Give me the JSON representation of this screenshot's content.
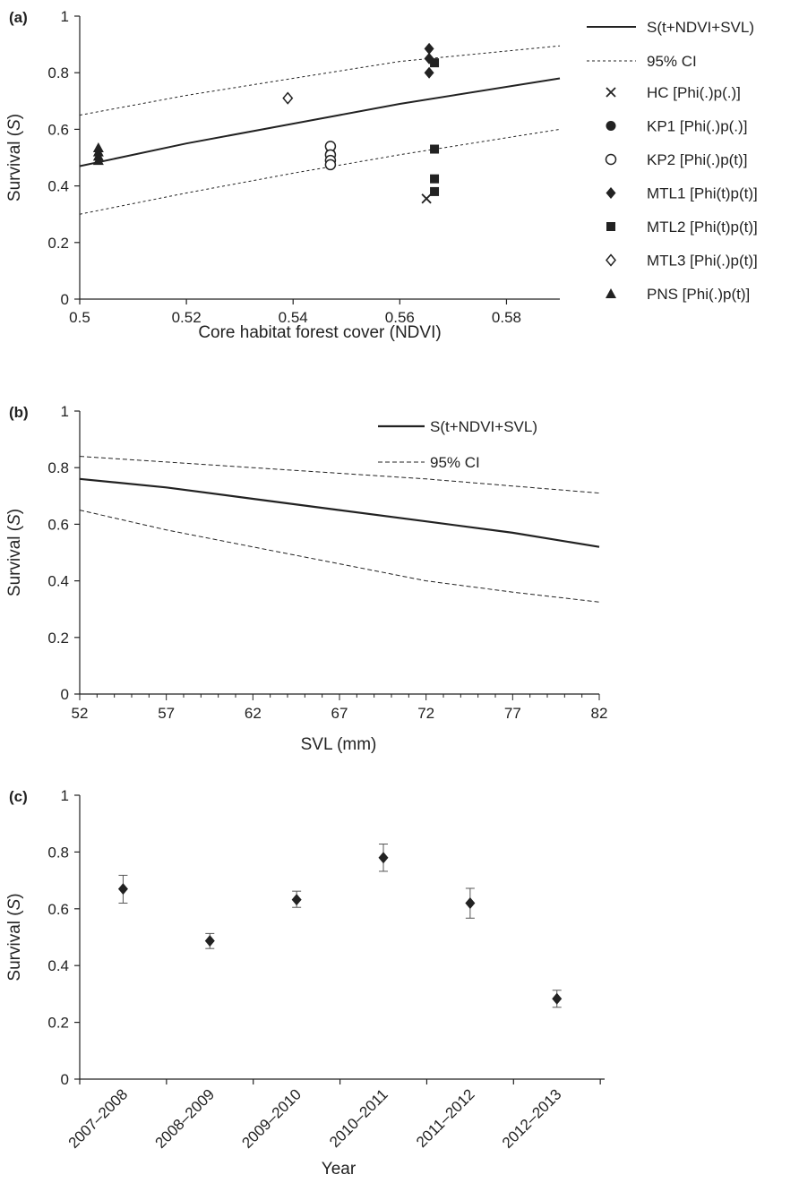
{
  "chart_data": [
    {
      "panel": "(a)",
      "type": "scatter",
      "xlabel": "Core habitat forest cover (NDVI)",
      "ylabel": "Survival",
      "ylabel_italic": "S",
      "xlim": [
        0.5,
        0.59
      ],
      "ylim": [
        0,
        1
      ],
      "xticks": [
        "0.5",
        "0.52",
        "0.54",
        "0.56",
        "0.58"
      ],
      "yticks": [
        "0",
        "0.2",
        "0.4",
        "0.6",
        "0.8",
        "1"
      ],
      "legend_position": "right",
      "grid": false,
      "lines": [
        {
          "name": "S(t+NDVI+SVL)",
          "style": "solid",
          "points": [
            [
              0.5,
              0.47
            ],
            [
              0.52,
              0.55
            ],
            [
              0.54,
              0.62
            ],
            [
              0.56,
              0.69
            ],
            [
              0.59,
              0.78
            ]
          ]
        },
        {
          "name": "95% CI",
          "style": "dotted",
          "points": [
            [
              0.5,
              0.65
            ],
            [
              0.52,
              0.72
            ],
            [
              0.54,
              0.78
            ],
            [
              0.56,
              0.84
            ],
            [
              0.59,
              0.895
            ]
          ]
        },
        {
          "name": "",
          "style": "dotted",
          "points": [
            [
              0.5,
              0.3
            ],
            [
              0.52,
              0.375
            ],
            [
              0.54,
              0.445
            ],
            [
              0.56,
              0.51
            ],
            [
              0.59,
              0.6
            ]
          ]
        }
      ],
      "series": [
        {
          "name": "HC  [Phi(.)p(.)]",
          "marker": "cross",
          "points": [
            [
              0.565,
              0.355
            ]
          ]
        },
        {
          "name": "KP1 [Phi(.)p(.)]",
          "marker": "circle-filled",
          "points": [
            [
              0.547,
              0.515
            ]
          ]
        },
        {
          "name": "KP2 [Phi(.)p(t)]",
          "marker": "circle-open",
          "points": [
            [
              0.547,
              0.54
            ],
            [
              0.547,
              0.51
            ],
            [
              0.547,
              0.49
            ],
            [
              0.547,
              0.475
            ]
          ]
        },
        {
          "name": "MTL1 [Phi(t)p(t)]",
          "marker": "diamond-filled",
          "points": [
            [
              0.5655,
              0.885
            ],
            [
              0.5655,
              0.85
            ],
            [
              0.5655,
              0.8
            ]
          ]
        },
        {
          "name": "MTL2 [Phi(t)p(t)]",
          "marker": "square-filled",
          "points": [
            [
              0.5665,
              0.835
            ],
            [
              0.5665,
              0.53
            ],
            [
              0.5665,
              0.425
            ],
            [
              0.5665,
              0.38
            ]
          ]
        },
        {
          "name": "MTL3 [Phi(.)p(t)]",
          "marker": "diamond-open",
          "points": [
            [
              0.539,
              0.71
            ]
          ]
        },
        {
          "name": "PNS [Phi(.)p(t)]",
          "marker": "triangle-filled",
          "points": [
            [
              0.5035,
              0.535
            ],
            [
              0.5035,
              0.52
            ],
            [
              0.5035,
              0.505
            ],
            [
              0.5035,
              0.49
            ]
          ]
        }
      ]
    },
    {
      "panel": "(b)",
      "type": "line",
      "xlabel": "SVL (mm)",
      "ylabel": "Survival",
      "ylabel_italic": "S",
      "xlim": [
        52,
        82
      ],
      "ylim": [
        0,
        1
      ],
      "xticks": [
        "52",
        "57",
        "62",
        "67",
        "72",
        "77",
        "82"
      ],
      "yticks": [
        "0",
        "0.2",
        "0.4",
        "0.6",
        "0.8",
        "1"
      ],
      "legend_position": "top-right",
      "grid": false,
      "series": [
        {
          "name": "S(t+NDVI+SVL)",
          "style": "solid",
          "x": [
            52,
            57,
            62,
            67,
            72,
            77,
            82
          ],
          "values": [
            0.76,
            0.73,
            0.69,
            0.65,
            0.61,
            0.57,
            0.52
          ]
        },
        {
          "name": "95% CI",
          "style": "dashed",
          "x": [
            52,
            57,
            62,
            67,
            72,
            77,
            82
          ],
          "values": [
            0.84,
            0.82,
            0.8,
            0.78,
            0.76,
            0.735,
            0.71
          ]
        },
        {
          "name": "",
          "style": "dashed",
          "x": [
            52,
            57,
            62,
            67,
            72,
            77,
            82
          ],
          "values": [
            0.65,
            0.58,
            0.52,
            0.46,
            0.4,
            0.36,
            0.325
          ]
        }
      ]
    },
    {
      "panel": "(c)",
      "type": "scatter",
      "xlabel": "Year",
      "ylabel": "Survival",
      "ylabel_italic": "S",
      "ylim": [
        0,
        1
      ],
      "yticks": [
        "0",
        "0.2",
        "0.4",
        "0.6",
        "0.8",
        "1"
      ],
      "categories": [
        "2007–2008",
        "2008–2009",
        "2009–2010",
        "2010–2011",
        "2011–2012",
        "2012–2013"
      ],
      "values": [
        0.67,
        0.487,
        0.632,
        0.78,
        0.62,
        0.283
      ],
      "error_low": [
        0.62,
        0.46,
        0.605,
        0.732,
        0.567,
        0.253
      ],
      "error_high": [
        0.718,
        0.513,
        0.662,
        0.828,
        0.672,
        0.313
      ],
      "marker": "diamond-filled",
      "grid": false
    }
  ]
}
